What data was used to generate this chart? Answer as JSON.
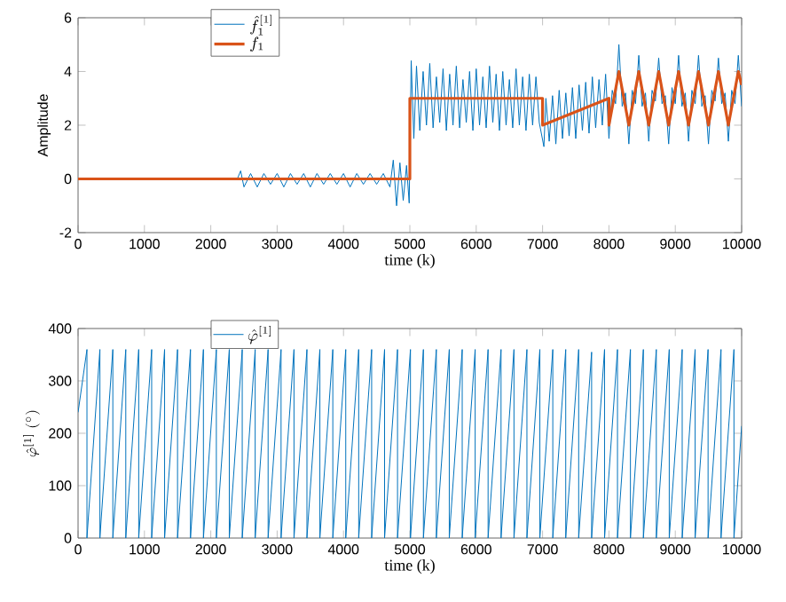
{
  "chart_data": [
    {
      "type": "line",
      "xlabel": "time (k)",
      "ylabel": "Amplitude",
      "xlim": [
        0,
        10000
      ],
      "ylim": [
        -2,
        6
      ],
      "xticks": [
        0,
        1000,
        2000,
        3000,
        4000,
        5000,
        6000,
        7000,
        8000,
        9000,
        10000
      ],
      "yticks": [
        -2,
        0,
        2,
        4,
        6
      ],
      "grid": false,
      "legend": "top",
      "series": [
        {
          "name": "\\hat{f}_1^{[1]}",
          "color": "#0072bd",
          "x": [
            0,
            1200,
            2400,
            2450,
            2500,
            2600,
            2700,
            2800,
            2900,
            3000,
            3100,
            3200,
            3300,
            3400,
            3500,
            3600,
            3700,
            3800,
            3900,
            4000,
            4100,
            4200,
            4300,
            4400,
            4500,
            4600,
            4700,
            4750,
            4800,
            4850,
            4900,
            4950,
            4990,
            5020,
            5060,
            5100,
            5150,
            5200,
            5250,
            5300,
            5350,
            5400,
            5450,
            5500,
            5550,
            5600,
            5650,
            5700,
            5750,
            5800,
            5850,
            5900,
            5950,
            6000,
            6050,
            6100,
            6150,
            6200,
            6250,
            6300,
            6350,
            6400,
            6450,
            6500,
            6550,
            6600,
            6650,
            6700,
            6750,
            6800,
            6850,
            6900,
            6950,
            7020,
            7050,
            7100,
            7150,
            7200,
            7250,
            7300,
            7350,
            7400,
            7450,
            7500,
            7550,
            7600,
            7650,
            7700,
            7750,
            7800,
            7850,
            7900,
            7950,
            8000,
            8050,
            8100,
            8150,
            8200,
            8250,
            8300,
            8350,
            8400,
            8450,
            8500,
            8550,
            8600,
            8650,
            8700,
            8750,
            8800,
            8850,
            8900,
            8950,
            9000,
            9050,
            9100,
            9150,
            9200,
            9250,
            9300,
            9350,
            9400,
            9450,
            9500,
            9550,
            9600,
            9650,
            9700,
            9750,
            9800,
            9850,
            9900,
            9950,
            10000
          ],
          "values": [
            0,
            0,
            0,
            0.3,
            -0.3,
            0.2,
            -0.3,
            0.2,
            -0.2,
            0.2,
            -0.3,
            0.2,
            -0.2,
            0.2,
            -0.3,
            0.2,
            -0.2,
            0.2,
            -0.2,
            0.2,
            -0.3,
            0.2,
            -0.2,
            0.2,
            -0.2,
            0.2,
            -0.3,
            0.7,
            -1.0,
            0.6,
            -0.8,
            0.5,
            -0.9,
            4.4,
            1.5,
            4.2,
            1.8,
            4.0,
            2.0,
            4.3,
            1.9,
            3.8,
            2.1,
            4.1,
            1.8,
            3.9,
            2.0,
            4.2,
            1.9,
            3.7,
            2.1,
            4.0,
            1.8,
            4.1,
            2.0,
            3.8,
            1.9,
            4.2,
            2.1,
            3.9,
            1.8,
            4.0,
            2.0,
            3.7,
            1.9,
            4.1,
            2.0,
            3.8,
            1.8,
            3.9,
            2.0,
            3.8,
            2.1,
            1.2,
            3.0,
            1.4,
            3.1,
            1.3,
            3.3,
            1.5,
            3.2,
            1.6,
            3.4,
            1.5,
            3.5,
            1.8,
            3.6,
            1.7,
            3.8,
            1.9,
            3.7,
            2.0,
            3.9,
            1.5,
            3.3,
            2.8,
            5.0,
            2.7,
            3.2,
            1.3,
            3.3,
            2.8,
            4.6,
            2.7,
            3.2,
            1.4,
            3.3,
            2.9,
            4.5,
            2.8,
            3.1,
            1.3,
            3.4,
            2.8,
            4.6,
            2.7,
            3.2,
            1.4,
            3.3,
            2.8,
            4.6,
            2.7,
            3.1,
            1.3,
            3.3,
            2.9,
            4.5,
            2.8,
            3.2,
            1.4,
            3.3,
            2.8,
            4.6,
            2.7
          ]
        },
        {
          "name": "f_1",
          "color": "#d95319",
          "x": [
            0,
            5000,
            5000,
            7000,
            7000,
            8000,
            8000,
            8075,
            8150,
            8225,
            8300,
            8375,
            8450,
            8525,
            8600,
            8675,
            8750,
            8825,
            8900,
            8975,
            9050,
            9125,
            9200,
            9275,
            9350,
            9425,
            9500,
            9575,
            9650,
            9725,
            9800,
            9875,
            9950,
            10000
          ],
          "values": [
            0,
            0,
            3,
            3,
            2,
            3,
            2,
            3,
            4,
            3,
            2,
            3,
            4,
            3,
            2,
            3,
            4,
            3,
            2,
            3,
            4,
            3,
            2,
            3,
            4,
            3,
            2,
            3,
            4,
            3,
            2,
            3,
            4,
            3.5
          ]
        }
      ]
    },
    {
      "type": "line",
      "xlabel": "time (k)",
      "ylabel": "\\hat{\\varphi}^{[1]}\\ (^\\circ)",
      "xlim": [
        0,
        10000
      ],
      "ylim": [
        0,
        400
      ],
      "xticks": [
        0,
        1000,
        2000,
        3000,
        4000,
        5000,
        6000,
        7000,
        8000,
        9000,
        10000
      ],
      "yticks": [
        0,
        100,
        200,
        300,
        400
      ],
      "grid": false,
      "legend": "top",
      "series": [
        {
          "name": "\\hat{\\varphi}^{[1]}",
          "color": "#0072bd",
          "x": [
            0,
            134,
            134,
            329,
            329,
            524,
            524,
            719,
            719,
            914,
            914,
            1109,
            1109,
            1304,
            1304,
            1499,
            1499,
            1694,
            1694,
            1889,
            1889,
            2084,
            2084,
            2279,
            2279,
            2474,
            2474,
            2669,
            2669,
            2864,
            2864,
            3059,
            3059,
            3254,
            3254,
            3449,
            3449,
            3644,
            3644,
            3839,
            3839,
            4034,
            4034,
            4229,
            4229,
            4424,
            4424,
            4619,
            4619,
            4814,
            4814,
            5009,
            5009,
            5204,
            5204,
            5399,
            5399,
            5594,
            5594,
            5789,
            5789,
            5984,
            5984,
            6179,
            6179,
            6374,
            6374,
            6569,
            6569,
            6764,
            6764,
            6959,
            6959,
            7154,
            7154,
            7349,
            7349,
            7544,
            7544,
            7739,
            7739,
            7934,
            7934,
            8129,
            8129,
            8324,
            8324,
            8519,
            8519,
            8714,
            8714,
            8909,
            8909,
            9104,
            9104,
            9299,
            9299,
            9494,
            9494,
            9689,
            9689,
            9884,
            9884,
            10000
          ],
          "values": [
            240,
            360,
            0,
            360,
            0,
            360,
            0,
            360,
            0,
            360,
            0,
            360,
            0,
            360,
            0,
            360,
            0,
            360,
            0,
            360,
            0,
            360,
            0,
            360,
            0,
            360,
            0,
            360,
            0,
            360,
            0,
            360,
            0,
            360,
            0,
            360,
            0,
            360,
            0,
            360,
            0,
            360,
            0,
            360,
            0,
            360,
            0,
            360,
            0,
            360,
            0,
            360,
            0,
            360,
            0,
            360,
            0,
            360,
            0,
            360,
            0,
            360,
            0,
            360,
            0,
            360,
            0,
            360,
            0,
            360,
            0,
            360,
            0,
            360,
            0,
            360,
            0,
            360,
            0,
            355,
            0,
            360,
            0,
            360,
            0,
            360,
            0,
            360,
            0,
            360,
            0,
            360,
            0,
            360,
            0,
            360,
            0,
            360,
            0,
            360,
            0,
            360,
            0,
            214
          ]
        }
      ]
    }
  ]
}
